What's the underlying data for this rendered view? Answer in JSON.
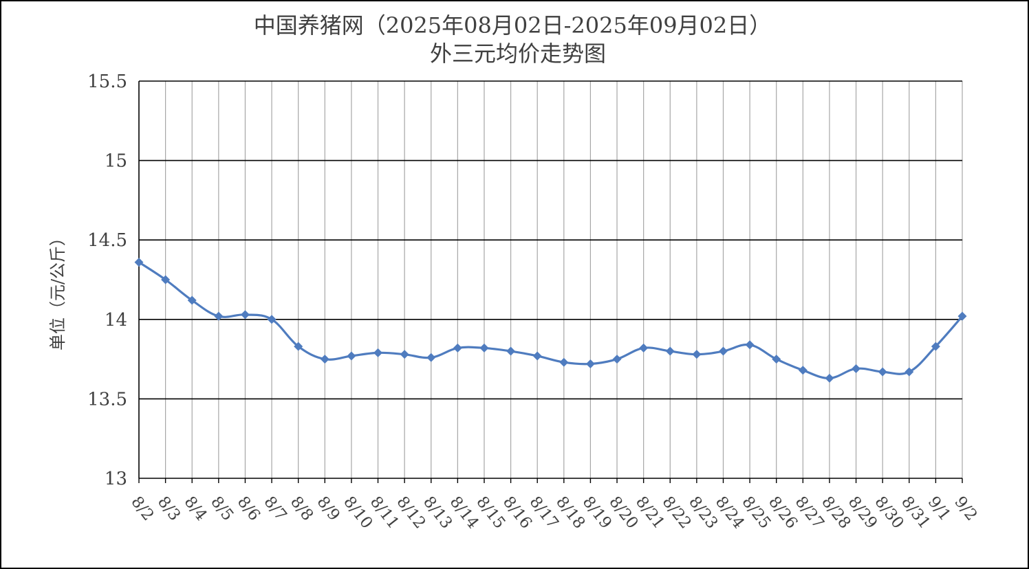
{
  "chart_data": {
    "type": "line",
    "title": "中国养猪网（2025年08月02日-2025年09月02日）",
    "subtitle": "外三元均价走势图",
    "xlabel": "",
    "ylabel": "单位（元/公斤）",
    "ylim": [
      13,
      15.5
    ],
    "yticks": [
      "13",
      "13.5",
      "14",
      "14.5",
      "15",
      "15.5"
    ],
    "grid": true,
    "categories": [
      "8/2",
      "8/3",
      "8/4",
      "8/5",
      "8/6",
      "8/7",
      "8/8",
      "8/9",
      "8/10",
      "8/11",
      "8/12",
      "8/13",
      "8/14",
      "8/15",
      "8/16",
      "8/17",
      "8/18",
      "8/19",
      "8/20",
      "8/21",
      "8/22",
      "8/23",
      "8/24",
      "8/25",
      "8/26",
      "8/27",
      "8/28",
      "8/29",
      "8/30",
      "8/31",
      "9/1",
      "9/2"
    ],
    "series": [
      {
        "values": [
          14.36,
          14.25,
          14.12,
          14.02,
          14.03,
          14.0,
          13.83,
          13.75,
          13.77,
          13.79,
          13.78,
          13.76,
          13.82,
          13.82,
          13.8,
          13.77,
          13.73,
          13.72,
          13.75,
          13.82,
          13.8,
          13.78,
          13.8,
          13.84,
          13.75,
          13.68,
          13.63,
          13.69,
          13.67,
          13.67,
          13.83,
          14.02
        ]
      }
    ],
    "line_color": "#4F7CBF",
    "gridline_color": "#000000",
    "vgrid_color": "#A6A6A6"
  }
}
